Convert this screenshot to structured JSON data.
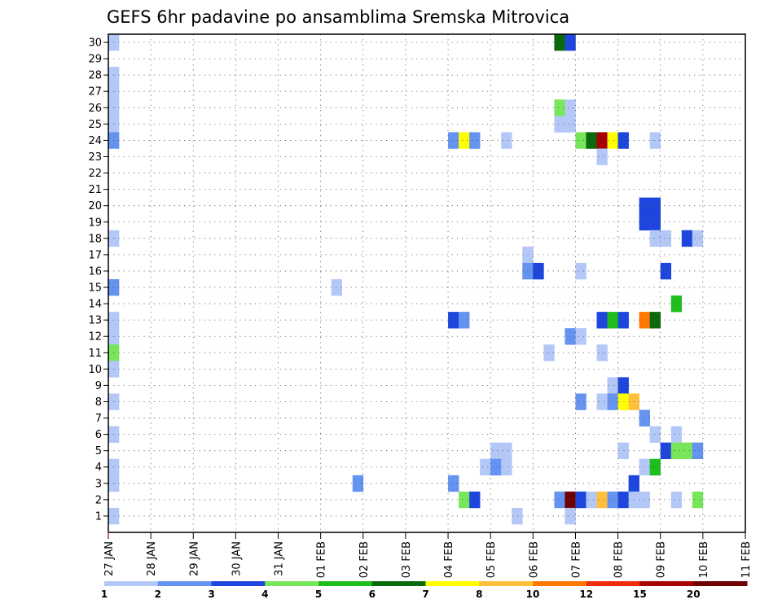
{
  "chart_data": {
    "type": "heatmap",
    "title": "GEFS 6hr padavine po ansamblima Sremska Mitrovica",
    "xlabel": "",
    "ylabel": "",
    "x_start": "2021-01-27",
    "x_step_hours": 6,
    "x_tick_labels": [
      "27 JAN",
      "28 JAN",
      "29 JAN",
      "30 JAN",
      "31 JAN",
      "01 FEB",
      "02 FEB",
      "03 FEB",
      "04 FEB",
      "05 FEB",
      "06 FEB",
      "07 FEB",
      "08 FEB",
      "09 FEB",
      "10 FEB",
      "11 FEB"
    ],
    "y_tick_labels": [
      "1",
      "2",
      "3",
      "4",
      "5",
      "6",
      "7",
      "8",
      "9",
      "10",
      "11",
      "12",
      "13",
      "14",
      "15",
      "16",
      "17",
      "18",
      "19",
      "20",
      "21",
      "22",
      "23",
      "24",
      "25",
      "26",
      "27",
      "28",
      "29",
      "30"
    ],
    "grid": true,
    "legend": "bottom",
    "colorbar": {
      "labels": [
        "1",
        "2",
        "3",
        "4",
        "5",
        "6",
        "7",
        "8",
        "10",
        "12",
        "15",
        "20"
      ],
      "colors": [
        "#b4c8f8",
        "#6494f0",
        "#1e46dc",
        "#78e65a",
        "#1ebe1e",
        "#0a690a",
        "#ffff00",
        "#ffc03c",
        "#ff7800",
        "#ee2d0a",
        "#a50000",
        "#6e0000"
      ]
    },
    "cells": [
      [
        27.125,
        30,
        1
      ],
      [
        27.125,
        28,
        1
      ],
      [
        27.125,
        27,
        1
      ],
      [
        27.125,
        26,
        1
      ],
      [
        27.125,
        25,
        1
      ],
      [
        27.125,
        24,
        2
      ],
      [
        27.125,
        18,
        1
      ],
      [
        27.125,
        15,
        2
      ],
      [
        27.125,
        13,
        1
      ],
      [
        27.125,
        12,
        1
      ],
      [
        27.125,
        11,
        4
      ],
      [
        27.125,
        10,
        1
      ],
      [
        27.125,
        8,
        1
      ],
      [
        27.125,
        6,
        1
      ],
      [
        27.125,
        4,
        1
      ],
      [
        27.125,
        3,
        1
      ],
      [
        27.125,
        1,
        1
      ],
      [
        32.375,
        15,
        1
      ],
      [
        32.875,
        3,
        2
      ],
      [
        35.125,
        24,
        2
      ],
      [
        35.375,
        24,
        7
      ],
      [
        35.625,
        24,
        2
      ],
      [
        35.125,
        13,
        3
      ],
      [
        35.375,
        13,
        2
      ],
      [
        35.125,
        3,
        2
      ],
      [
        35.375,
        2,
        4
      ],
      [
        35.625,
        2,
        3
      ],
      [
        36.375,
        24,
        1
      ],
      [
        36.125,
        5,
        1
      ],
      [
        36.375,
        5,
        1
      ],
      [
        35.875,
        4,
        1
      ],
      [
        36.125,
        4,
        2
      ],
      [
        36.375,
        4,
        1
      ],
      [
        36.625,
        1,
        1
      ],
      [
        36.875,
        17,
        1
      ],
      [
        36.875,
        16,
        2
      ],
      [
        37.125,
        16,
        3
      ],
      [
        37.375,
        11,
        1
      ],
      [
        37.625,
        30,
        6
      ],
      [
        37.875,
        30,
        3
      ],
      [
        37.625,
        26,
        4
      ],
      [
        37.875,
        26,
        1
      ],
      [
        37.625,
        25,
        1
      ],
      [
        37.875,
        25,
        1
      ],
      [
        38.125,
        24,
        4
      ],
      [
        38.375,
        24,
        6
      ],
      [
        38.625,
        24,
        11
      ],
      [
        38.875,
        24,
        7
      ],
      [
        39.125,
        24,
        3
      ],
      [
        38.625,
        23,
        1
      ],
      [
        38.125,
        16,
        1
      ],
      [
        38.625,
        13,
        3
      ],
      [
        38.875,
        13,
        5
      ],
      [
        39.125,
        13,
        3
      ],
      [
        39.625,
        13,
        9
      ],
      [
        39.875,
        13,
        6
      ],
      [
        37.875,
        12,
        2
      ],
      [
        38.125,
        12,
        1
      ],
      [
        38.625,
        11,
        1
      ],
      [
        38.875,
        9,
        1
      ],
      [
        39.125,
        9,
        3
      ],
      [
        38.125,
        8,
        2
      ],
      [
        38.625,
        8,
        1
      ],
      [
        38.875,
        8,
        2
      ],
      [
        39.125,
        8,
        7
      ],
      [
        39.375,
        8,
        8
      ],
      [
        39.625,
        7,
        2
      ],
      [
        39.875,
        6,
        1
      ],
      [
        40.375,
        6,
        1
      ],
      [
        39.125,
        5,
        1
      ],
      [
        40.125,
        5,
        3
      ],
      [
        40.375,
        5,
        4
      ],
      [
        40.625,
        5,
        4
      ],
      [
        40.875,
        5,
        2
      ],
      [
        39.625,
        4,
        1
      ],
      [
        39.875,
        4,
        5
      ],
      [
        39.375,
        3,
        3
      ],
      [
        37.625,
        2,
        2
      ],
      [
        37.875,
        2,
        12
      ],
      [
        38.125,
        2,
        3
      ],
      [
        38.375,
        2,
        1
      ],
      [
        38.625,
        2,
        8
      ],
      [
        38.875,
        2,
        2
      ],
      [
        39.125,
        2,
        3
      ],
      [
        39.375,
        2,
        1
      ],
      [
        39.625,
        2,
        1
      ],
      [
        40.375,
        2,
        1
      ],
      [
        40.875,
        2,
        4
      ],
      [
        37.875,
        1,
        1
      ],
      [
        39.875,
        24,
        1
      ],
      [
        39.625,
        20,
        3
      ],
      [
        39.875,
        20,
        3
      ],
      [
        39.625,
        19,
        3
      ],
      [
        39.875,
        19,
        3
      ],
      [
        39.875,
        18,
        1
      ],
      [
        40.125,
        18,
        1
      ],
      [
        40.625,
        18,
        3
      ],
      [
        40.875,
        18,
        1
      ],
      [
        40.125,
        16,
        3
      ],
      [
        40.375,
        14,
        5
      ]
    ]
  }
}
